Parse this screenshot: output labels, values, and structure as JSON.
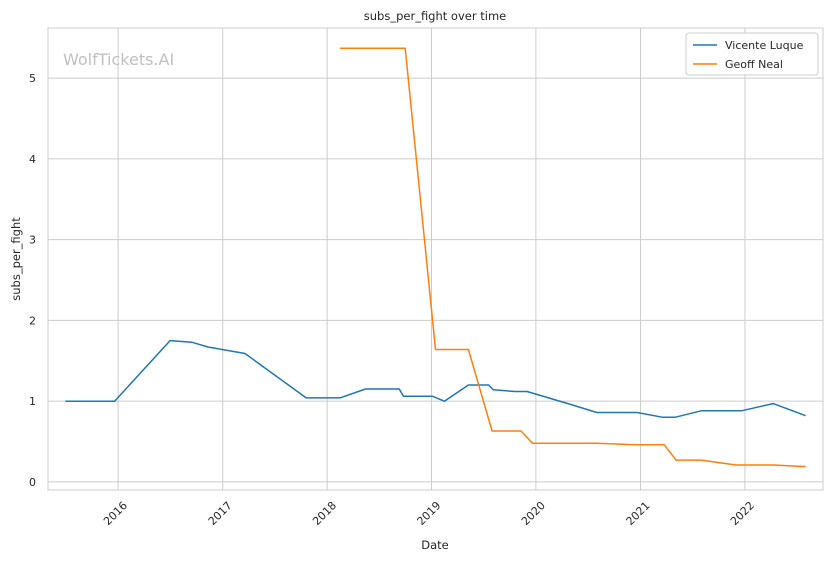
{
  "chart_data": {
    "type": "line",
    "title": "subs_per_fight over time",
    "xlabel": "Date",
    "ylabel": "subs_per_fight",
    "watermark": "WolfTickets.AI",
    "x_axis_type": "date",
    "xlim": [
      "2015-05-01",
      "2022-10-01"
    ],
    "ylim": [
      -0.1,
      5.62
    ],
    "x_ticks": [
      "2016",
      "2017",
      "2018",
      "2019",
      "2020",
      "2021",
      "2022"
    ],
    "y_ticks": [
      "0",
      "1",
      "2",
      "3",
      "4",
      "5"
    ],
    "grid": true,
    "legend_position": "top-right",
    "series": [
      {
        "name": "Vicente Luque",
        "color": "#1f77b4",
        "points": [
          [
            "2015-07-01",
            1.0
          ],
          [
            "2015-12-20",
            1.0
          ],
          [
            "2016-07-01",
            1.75
          ],
          [
            "2016-09-15",
            1.73
          ],
          [
            "2016-11-10",
            1.67
          ],
          [
            "2017-03-20",
            1.59
          ],
          [
            "2017-10-20",
            1.04
          ],
          [
            "2018-02-15",
            1.04
          ],
          [
            "2018-05-15",
            1.15
          ],
          [
            "2018-09-10",
            1.15
          ],
          [
            "2018-09-25",
            1.06
          ],
          [
            "2019-01-05",
            1.06
          ],
          [
            "2019-02-15",
            1.0
          ],
          [
            "2019-05-10",
            1.2
          ],
          [
            "2019-07-20",
            1.2
          ],
          [
            "2019-08-05",
            1.14
          ],
          [
            "2019-10-20",
            1.12
          ],
          [
            "2019-12-01",
            1.12
          ],
          [
            "2020-05-01",
            0.96
          ],
          [
            "2020-08-01",
            0.86
          ],
          [
            "2020-12-20",
            0.86
          ],
          [
            "2021-03-20",
            0.8
          ],
          [
            "2021-05-01",
            0.8
          ],
          [
            "2021-08-01",
            0.88
          ],
          [
            "2021-12-20",
            0.88
          ],
          [
            "2022-04-10",
            0.97
          ],
          [
            "2022-08-01",
            0.82
          ]
        ]
      },
      {
        "name": "Geoff Neal",
        "color": "#ff7f0e",
        "points": [
          [
            "2018-02-15",
            5.37
          ],
          [
            "2018-10-01",
            5.37
          ],
          [
            "2019-01-15",
            1.64
          ],
          [
            "2019-05-10",
            1.64
          ],
          [
            "2019-08-01",
            0.63
          ],
          [
            "2019-11-10",
            0.63
          ],
          [
            "2019-12-20",
            0.48
          ],
          [
            "2020-08-01",
            0.48
          ],
          [
            "2020-12-20",
            0.46
          ],
          [
            "2021-03-25",
            0.46
          ],
          [
            "2021-05-05",
            0.27
          ],
          [
            "2021-08-01",
            0.27
          ],
          [
            "2021-12-01",
            0.21
          ],
          [
            "2022-04-10",
            0.21
          ],
          [
            "2022-08-01",
            0.19
          ]
        ]
      }
    ]
  }
}
